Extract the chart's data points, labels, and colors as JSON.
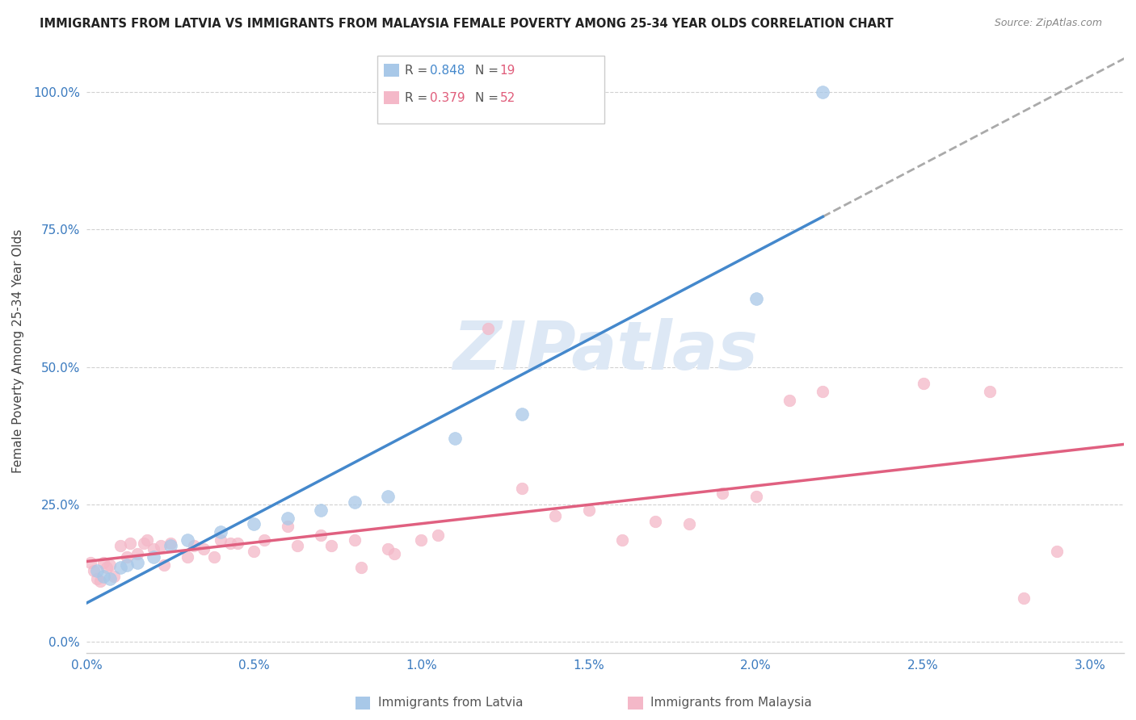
{
  "title": "IMMIGRANTS FROM LATVIA VS IMMIGRANTS FROM MALAYSIA FEMALE POVERTY AMONG 25-34 YEAR OLDS CORRELATION CHART",
  "source": "Source: ZipAtlas.com",
  "ylabel": "Female Poverty Among 25-34 Year Olds",
  "xlim": [
    0.0,
    0.031
  ],
  "ylim": [
    -0.02,
    1.08
  ],
  "xtick_labels": [
    "0.0%",
    "0.5%",
    "1.0%",
    "1.5%",
    "2.0%",
    "2.5%",
    "3.0%"
  ],
  "xtick_vals": [
    0.0,
    0.005,
    0.01,
    0.015,
    0.02,
    0.025,
    0.03
  ],
  "ytick_labels": [
    "0.0%",
    "25.0%",
    "50.0%",
    "75.0%",
    "100.0%"
  ],
  "ytick_vals": [
    0.0,
    0.25,
    0.5,
    0.75,
    1.0
  ],
  "latvia_color": "#a8c8e8",
  "malaysia_color": "#f4b8c8",
  "latvia_line_color": "#4488cc",
  "malaysia_line_color": "#e06080",
  "latvia_R": 0.848,
  "latvia_N": 19,
  "malaysia_R": 0.379,
  "malaysia_N": 52,
  "watermark_color": "#dde8f5",
  "latvia_points": [
    [
      0.0003,
      0.13
    ],
    [
      0.0005,
      0.12
    ],
    [
      0.0007,
      0.115
    ],
    [
      0.001,
      0.135
    ],
    [
      0.0012,
      0.14
    ],
    [
      0.0015,
      0.145
    ],
    [
      0.002,
      0.155
    ],
    [
      0.0025,
      0.175
    ],
    [
      0.003,
      0.185
    ],
    [
      0.004,
      0.2
    ],
    [
      0.005,
      0.215
    ],
    [
      0.006,
      0.225
    ],
    [
      0.007,
      0.24
    ],
    [
      0.008,
      0.255
    ],
    [
      0.009,
      0.265
    ],
    [
      0.011,
      0.37
    ],
    [
      0.013,
      0.415
    ],
    [
      0.02,
      0.625
    ],
    [
      0.022,
      1.0
    ]
  ],
  "malaysia_points": [
    [
      0.0001,
      0.145
    ],
    [
      0.0002,
      0.13
    ],
    [
      0.0003,
      0.115
    ],
    [
      0.0004,
      0.11
    ],
    [
      0.0005,
      0.145
    ],
    [
      0.0006,
      0.135
    ],
    [
      0.0007,
      0.14
    ],
    [
      0.0008,
      0.12
    ],
    [
      0.001,
      0.175
    ],
    [
      0.0012,
      0.155
    ],
    [
      0.0013,
      0.18
    ],
    [
      0.0015,
      0.16
    ],
    [
      0.0017,
      0.18
    ],
    [
      0.0018,
      0.185
    ],
    [
      0.002,
      0.17
    ],
    [
      0.0022,
      0.175
    ],
    [
      0.0023,
      0.14
    ],
    [
      0.0025,
      0.18
    ],
    [
      0.003,
      0.155
    ],
    [
      0.0032,
      0.175
    ],
    [
      0.0035,
      0.17
    ],
    [
      0.0038,
      0.155
    ],
    [
      0.004,
      0.185
    ],
    [
      0.0043,
      0.18
    ],
    [
      0.0045,
      0.18
    ],
    [
      0.005,
      0.165
    ],
    [
      0.0053,
      0.185
    ],
    [
      0.006,
      0.21
    ],
    [
      0.0063,
      0.175
    ],
    [
      0.007,
      0.195
    ],
    [
      0.0073,
      0.175
    ],
    [
      0.008,
      0.185
    ],
    [
      0.0082,
      0.135
    ],
    [
      0.009,
      0.17
    ],
    [
      0.0092,
      0.16
    ],
    [
      0.01,
      0.185
    ],
    [
      0.0105,
      0.195
    ],
    [
      0.012,
      0.57
    ],
    [
      0.013,
      0.28
    ],
    [
      0.014,
      0.23
    ],
    [
      0.015,
      0.24
    ],
    [
      0.016,
      0.185
    ],
    [
      0.017,
      0.22
    ],
    [
      0.018,
      0.215
    ],
    [
      0.019,
      0.27
    ],
    [
      0.02,
      0.265
    ],
    [
      0.021,
      0.44
    ],
    [
      0.022,
      0.455
    ],
    [
      0.025,
      0.47
    ],
    [
      0.027,
      0.455
    ],
    [
      0.028,
      0.08
    ],
    [
      0.029,
      0.165
    ]
  ],
  "latvia_size": 130,
  "malaysia_size": 110,
  "bg_color": "#ffffff",
  "grid_color": "#cccccc"
}
